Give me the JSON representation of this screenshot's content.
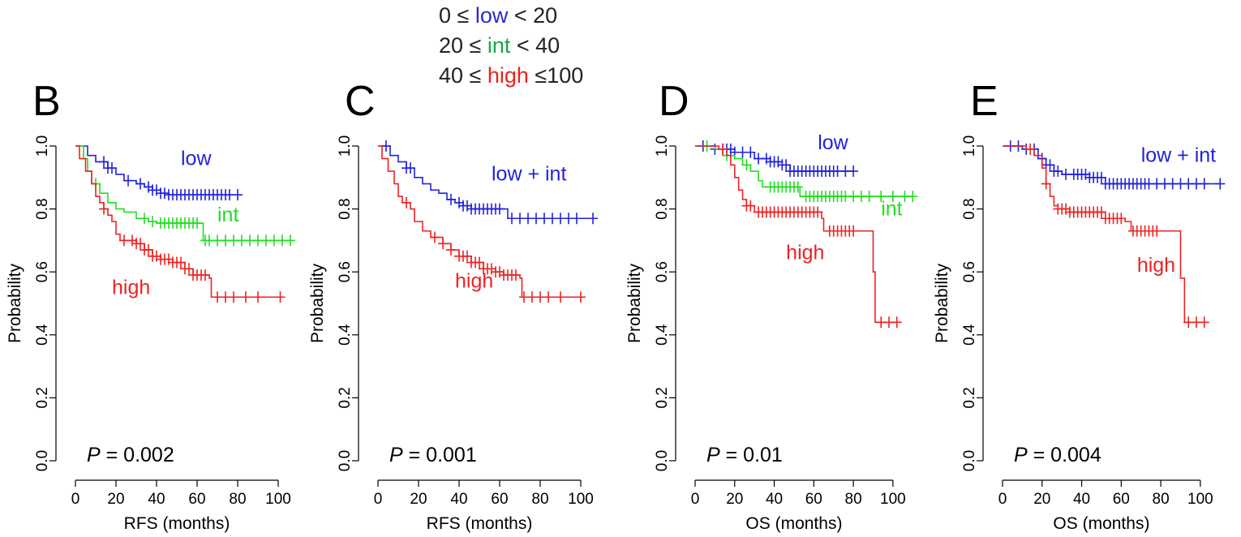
{
  "legend": [
    {
      "prefix": "0 ≤ ",
      "name": "low",
      "suffix": " < 20",
      "color": "#2b2bc8"
    },
    {
      "prefix": "20 ≤ ",
      "name": "int",
      "suffix": " < 40",
      "color": "#1aa54a"
    },
    {
      "prefix": "40 ≤ ",
      "name": "high",
      "suffix": " ≤100",
      "color": "#e8231c"
    }
  ],
  "colors": {
    "low": "#2222dd",
    "int": "#22dd22",
    "high": "#ee2222"
  },
  "chart_data": [
    {
      "type": "line",
      "panel": "B",
      "xlabel": "RFS (months)",
      "ylabel": "Probability",
      "xlim": [
        0,
        106
      ],
      "ylim": [
        0,
        1
      ],
      "xticks": [
        "0",
        "20",
        "40",
        "60",
        "80",
        "100"
      ],
      "yticks": [
        "0.0",
        "0.2",
        "0.4",
        "0.6",
        "0.8",
        "1.0"
      ],
      "p_label": "P",
      "p_value": " = 0.002",
      "series": [
        {
          "name": "low",
          "color": "#2222dd",
          "label_at": [
            52,
            0.94
          ],
          "steps": [
            [
              0,
              1.0
            ],
            [
              6,
              0.97
            ],
            [
              10,
              0.95
            ],
            [
              16,
              0.93
            ],
            [
              20,
              0.91
            ],
            [
              24,
              0.89
            ],
            [
              30,
              0.88
            ],
            [
              34,
              0.87
            ],
            [
              38,
              0.86
            ],
            [
              42,
              0.85
            ],
            [
              46,
              0.845
            ],
            [
              80,
              0.845
            ]
          ],
          "censors": [
            14,
            16,
            18,
            26,
            32,
            36,
            38,
            40,
            42,
            44,
            46,
            48,
            50,
            52,
            54,
            56,
            58,
            60,
            62,
            64,
            66,
            68,
            70,
            72,
            74,
            76,
            80
          ]
        },
        {
          "name": "int",
          "color": "#22dd22",
          "label_at": [
            70,
            0.76
          ],
          "steps": [
            [
              0,
              1.0
            ],
            [
              4,
              0.96
            ],
            [
              6,
              0.92
            ],
            [
              8,
              0.88
            ],
            [
              12,
              0.85
            ],
            [
              16,
              0.82
            ],
            [
              20,
              0.8
            ],
            [
              24,
              0.79
            ],
            [
              30,
              0.77
            ],
            [
              36,
              0.76
            ],
            [
              40,
              0.755
            ],
            [
              62,
              0.755
            ],
            [
              63,
              0.7
            ],
            [
              106,
              0.7
            ]
          ],
          "censors": [
            10,
            34,
            38,
            42,
            44,
            46,
            48,
            50,
            52,
            54,
            56,
            58,
            60,
            64,
            66,
            70,
            74,
            78,
            82,
            86,
            90,
            94,
            98,
            102,
            106
          ]
        },
        {
          "name": "high",
          "color": "#ee2222",
          "label_at": [
            18,
            0.53
          ],
          "steps": [
            [
              0,
              1.0
            ],
            [
              2,
              0.96
            ],
            [
              5,
              0.92
            ],
            [
              8,
              0.88
            ],
            [
              10,
              0.84
            ],
            [
              12,
              0.82
            ],
            [
              14,
              0.8
            ],
            [
              16,
              0.78
            ],
            [
              18,
              0.76
            ],
            [
              20,
              0.72
            ],
            [
              22,
              0.7
            ],
            [
              30,
              0.69
            ],
            [
              34,
              0.67
            ],
            [
              38,
              0.65
            ],
            [
              42,
              0.64
            ],
            [
              48,
              0.63
            ],
            [
              54,
              0.61
            ],
            [
              58,
              0.59
            ],
            [
              66,
              0.58
            ],
            [
              67,
              0.52
            ],
            [
              101,
              0.52
            ]
          ],
          "censors": [
            14,
            24,
            28,
            30,
            32,
            34,
            36,
            38,
            40,
            42,
            44,
            46,
            48,
            50,
            52,
            54,
            56,
            58,
            60,
            62,
            64,
            70,
            74,
            78,
            84,
            90,
            101
          ]
        }
      ]
    },
    {
      "type": "line",
      "panel": "C",
      "xlabel": "RFS (months)",
      "ylabel": "Probability",
      "xlim": [
        0,
        106
      ],
      "ylim": [
        0,
        1
      ],
      "xticks": [
        "0",
        "20",
        "40",
        "60",
        "80",
        "100"
      ],
      "yticks": [
        "0.0",
        "0.2",
        "0.4",
        "0.6",
        "0.8",
        "1.0"
      ],
      "p_label": "P",
      "p_value": " = 0.001",
      "series": [
        {
          "name": "low + int",
          "color": "#2222dd",
          "label_at": [
            56,
            0.89
          ],
          "steps": [
            [
              0,
              1.0
            ],
            [
              6,
              0.97
            ],
            [
              10,
              0.95
            ],
            [
              14,
              0.93
            ],
            [
              18,
              0.9
            ],
            [
              22,
              0.88
            ],
            [
              26,
              0.86
            ],
            [
              30,
              0.85
            ],
            [
              34,
              0.83
            ],
            [
              38,
              0.82
            ],
            [
              42,
              0.81
            ],
            [
              46,
              0.8
            ],
            [
              60,
              0.8
            ],
            [
              64,
              0.77
            ],
            [
              106,
              0.77
            ]
          ],
          "censors": [
            4,
            14,
            16,
            36,
            40,
            42,
            44,
            46,
            48,
            50,
            52,
            54,
            56,
            58,
            60,
            66,
            70,
            74,
            78,
            82,
            86,
            90,
            94,
            98,
            106
          ]
        },
        {
          "name": "high",
          "color": "#ee2222",
          "label_at": [
            38,
            0.55
          ],
          "steps": [
            [
              0,
              1.0
            ],
            [
              2,
              0.96
            ],
            [
              5,
              0.92
            ],
            [
              8,
              0.88
            ],
            [
              10,
              0.84
            ],
            [
              12,
              0.82
            ],
            [
              16,
              0.8
            ],
            [
              18,
              0.76
            ],
            [
              22,
              0.73
            ],
            [
              26,
              0.71
            ],
            [
              32,
              0.69
            ],
            [
              36,
              0.67
            ],
            [
              40,
              0.65
            ],
            [
              46,
              0.63
            ],
            [
              52,
              0.61
            ],
            [
              58,
              0.6
            ],
            [
              62,
              0.59
            ],
            [
              70,
              0.58
            ],
            [
              71,
              0.52
            ],
            [
              101,
              0.52
            ]
          ],
          "censors": [
            14,
            28,
            32,
            36,
            40,
            42,
            44,
            46,
            48,
            50,
            52,
            54,
            56,
            58,
            60,
            62,
            64,
            66,
            68,
            72,
            76,
            80,
            84,
            90,
            100
          ]
        }
      ]
    },
    {
      "type": "line",
      "panel": "D",
      "xlabel": "OS (months)",
      "ylabel": "Probability",
      "xlim": [
        0,
        114
      ],
      "ylim": [
        0,
        1
      ],
      "xticks": [
        "0",
        "20",
        "40",
        "60",
        "80",
        "100"
      ],
      "yticks": [
        "0.0",
        "0.2",
        "0.4",
        "0.6",
        "0.8",
        "1.0"
      ],
      "p_label": "P",
      "p_value": " = 0.01",
      "series": [
        {
          "name": "low",
          "color": "#2222dd",
          "label_at": [
            62,
            0.99
          ],
          "steps": [
            [
              0,
              1.0
            ],
            [
              10,
              0.99
            ],
            [
              20,
              0.98
            ],
            [
              30,
              0.96
            ],
            [
              38,
              0.95
            ],
            [
              44,
              0.94
            ],
            [
              48,
              0.92
            ],
            [
              80,
              0.92
            ]
          ],
          "censors": [
            4,
            10,
            14,
            16,
            18,
            20,
            24,
            28,
            32,
            36,
            38,
            40,
            42,
            44,
            46,
            48,
            50,
            52,
            54,
            56,
            58,
            60,
            62,
            64,
            66,
            68,
            70,
            72,
            76,
            80
          ]
        },
        {
          "name": "int",
          "color": "#22dd22",
          "label_at": [
            94,
            0.78
          ],
          "steps": [
            [
              0,
              1.0
            ],
            [
              10,
              0.99
            ],
            [
              16,
              0.97
            ],
            [
              20,
              0.96
            ],
            [
              24,
              0.94
            ],
            [
              28,
              0.92
            ],
            [
              32,
              0.89
            ],
            [
              34,
              0.87
            ],
            [
              52,
              0.87
            ],
            [
              53,
              0.84
            ],
            [
              110,
              0.84
            ]
          ],
          "censors": [
            6,
            16,
            26,
            38,
            40,
            42,
            44,
            46,
            48,
            50,
            52,
            56,
            58,
            60,
            62,
            64,
            66,
            68,
            70,
            72,
            74,
            76,
            80,
            84,
            88,
            94,
            100,
            106,
            110
          ]
        },
        {
          "name": "high",
          "color": "#ee2222",
          "label_at": [
            46,
            0.64
          ],
          "steps": [
            [
              0,
              1.0
            ],
            [
              12,
              0.99
            ],
            [
              16,
              0.97
            ],
            [
              18,
              0.94
            ],
            [
              20,
              0.9
            ],
            [
              22,
              0.86
            ],
            [
              24,
              0.83
            ],
            [
              26,
              0.81
            ],
            [
              30,
              0.79
            ],
            [
              64,
              0.77
            ],
            [
              65,
              0.73
            ],
            [
              89,
              0.73
            ],
            [
              90,
              0.6
            ],
            [
              91,
              0.44
            ],
            [
              102,
              0.44
            ]
          ],
          "censors": [
            14,
            26,
            28,
            32,
            34,
            36,
            38,
            40,
            42,
            44,
            46,
            48,
            50,
            52,
            54,
            56,
            58,
            60,
            62,
            68,
            70,
            72,
            74,
            76,
            78,
            80,
            94,
            98,
            102
          ]
        }
      ]
    },
    {
      "type": "line",
      "panel": "E",
      "xlabel": "OS (months)",
      "ylabel": "Probability",
      "xlim": [
        0,
        114
      ],
      "ylim": [
        0,
        1
      ],
      "xticks": [
        "0",
        "20",
        "40",
        "60",
        "80",
        "100"
      ],
      "yticks": [
        "0.0",
        "0.2",
        "0.4",
        "0.6",
        "0.8",
        "1.0"
      ],
      "p_label": "P",
      "p_value": " = 0.004",
      "series": [
        {
          "name": "low + int",
          "color": "#2222dd",
          "label_at": [
            70,
            0.95
          ],
          "steps": [
            [
              0,
              1.0
            ],
            [
              10,
              0.99
            ],
            [
              18,
              0.96
            ],
            [
              22,
              0.94
            ],
            [
              26,
              0.92
            ],
            [
              30,
              0.91
            ],
            [
              44,
              0.9
            ],
            [
              52,
              0.88
            ],
            [
              110,
              0.88
            ]
          ],
          "censors": [
            4,
            8,
            12,
            16,
            20,
            22,
            24,
            26,
            28,
            32,
            36,
            38,
            40,
            42,
            44,
            46,
            48,
            50,
            52,
            54,
            56,
            58,
            60,
            62,
            64,
            66,
            68,
            70,
            72,
            74,
            78,
            82,
            86,
            90,
            94,
            98,
            102,
            110
          ]
        },
        {
          "name": "high",
          "color": "#ee2222",
          "label_at": [
            68,
            0.6
          ],
          "steps": [
            [
              0,
              1.0
            ],
            [
              12,
              0.99
            ],
            [
              16,
              0.97
            ],
            [
              20,
              0.93
            ],
            [
              22,
              0.88
            ],
            [
              24,
              0.84
            ],
            [
              26,
              0.81
            ],
            [
              28,
              0.8
            ],
            [
              34,
              0.79
            ],
            [
              52,
              0.77
            ],
            [
              62,
              0.76
            ],
            [
              65,
              0.73
            ],
            [
              89,
              0.73
            ],
            [
              90,
              0.58
            ],
            [
              92,
              0.44
            ],
            [
              102,
              0.44
            ]
          ],
          "censors": [
            14,
            22,
            28,
            30,
            32,
            34,
            36,
            38,
            40,
            42,
            44,
            46,
            48,
            50,
            52,
            54,
            56,
            58,
            60,
            66,
            68,
            70,
            72,
            74,
            76,
            78,
            94,
            98,
            102
          ]
        }
      ]
    }
  ]
}
